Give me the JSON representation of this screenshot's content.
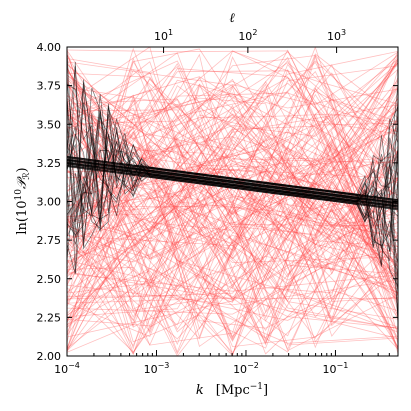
{
  "chart_data": {
    "type": "line",
    "title": "",
    "xlabel": {
      "symbol": "k",
      "unit": "[Mpc",
      "unit_exp": "−1",
      "unit_close": "]"
    },
    "ylabel": {
      "prefix": "ln(10",
      "exp": "10",
      "mid": "𝒫",
      "sub": "ℛ",
      "suffix": ")"
    },
    "top_xlabel": "ℓ",
    "x_scale": "log",
    "xlim": [
      0.0001,
      0.5
    ],
    "ylim": [
      2.0,
      4.0
    ],
    "x_ticks": [
      {
        "value": 0.0001,
        "base": "10",
        "exp": "−4"
      },
      {
        "value": 0.001,
        "base": "10",
        "exp": "−3"
      },
      {
        "value": 0.01,
        "base": "10",
        "exp": "−2"
      },
      {
        "value": 0.1,
        "base": "10",
        "exp": "−1"
      }
    ],
    "y_ticks": [
      {
        "value": 2.0,
        "label": "2.00"
      },
      {
        "value": 2.25,
        "label": "2.25"
      },
      {
        "value": 2.5,
        "label": "2.50"
      },
      {
        "value": 2.75,
        "label": "2.75"
      },
      {
        "value": 3.0,
        "label": "3.00"
      },
      {
        "value": 3.25,
        "label": "3.25"
      },
      {
        "value": 3.5,
        "label": "3.50"
      },
      {
        "value": 3.75,
        "label": "3.75"
      },
      {
        "value": 4.0,
        "label": "4.00"
      }
    ],
    "top_ticks": [
      {
        "k": 0.0012,
        "base": "10",
        "exp": "1"
      },
      {
        "k": 0.0105,
        "base": "10",
        "exp": "2"
      },
      {
        "k": 0.103,
        "base": "10",
        "exp": "3"
      }
    ],
    "grid": false,
    "series": [
      {
        "color": "#ff4a4a",
        "opacity": 0.35,
        "description_count": 200,
        "random_range": [
          2.0,
          4.0
        ]
      },
      {
        "color": "#000000",
        "opacity": 0.55,
        "central": {
          "at_k_min": 3.26,
          "at_k_max": 2.98
        },
        "spread": 0.07,
        "description_count": 60
      }
    ]
  }
}
